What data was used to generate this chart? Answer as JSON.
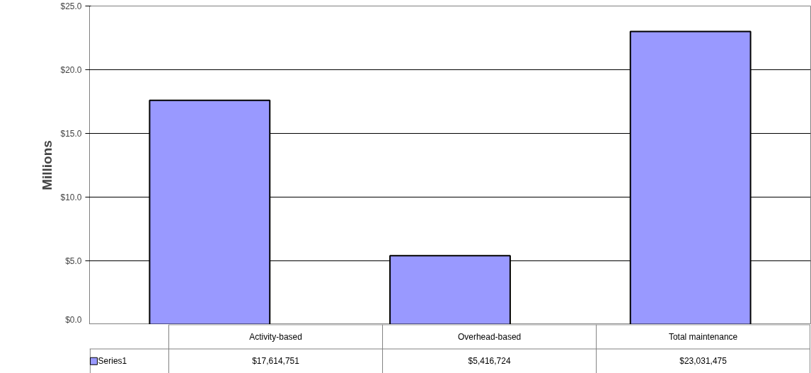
{
  "chart_data": {
    "type": "bar",
    "ylabel": "Millions",
    "categories": [
      "Activity-based",
      "Overhead-based",
      "Total maintenance"
    ],
    "series": [
      {
        "name": "Series1",
        "color": "#9999ff",
        "values": [
          17.6,
          5.4,
          23.0
        ]
      }
    ],
    "annotations": [
      "$17,614,751",
      "$5,416,724",
      "$23,031,475"
    ],
    "ylim": [
      0,
      25
    ],
    "yticks": [
      {
        "value": 0,
        "label": "$0.0"
      },
      {
        "value": 5,
        "label": "$5.0"
      },
      {
        "value": 10,
        "label": "$10.0"
      },
      {
        "value": 15,
        "label": "$15.0"
      },
      {
        "value": 20,
        "label": "$20.0"
      },
      {
        "value": 25,
        "label": "$25.0"
      }
    ],
    "grid": "y",
    "legend": "bottom"
  }
}
